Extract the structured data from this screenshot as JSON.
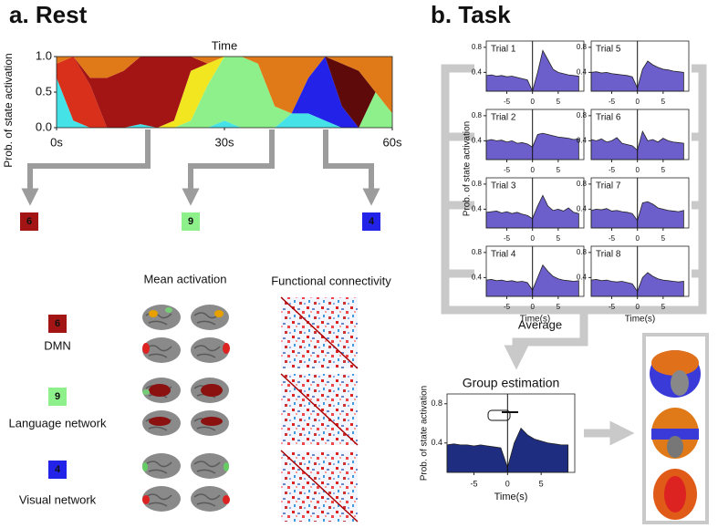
{
  "panel_a": {
    "label": "a. Rest"
  },
  "panel_b": {
    "label": "b. Task"
  },
  "states": [
    {
      "number": "6",
      "color": "#a31515",
      "name": "DMN"
    },
    {
      "number": "9",
      "color": "#8ef08a",
      "name": "Language network"
    },
    {
      "number": "4",
      "color": "#2222e8",
      "name": "Visual network"
    }
  ],
  "column_headers": [
    "Mean activation",
    "Functional connectivity"
  ],
  "average_label": "Average",
  "task_ylabel": "Prob. of state activation",
  "chart_data": [
    {
      "type": "stacked_area",
      "title": "Time",
      "ylabel": "Prob. of state activation",
      "x": [
        0,
        3,
        6,
        9,
        12,
        15,
        18,
        21,
        24,
        27,
        30,
        33,
        36,
        39,
        42,
        45,
        48,
        51,
        54,
        57,
        60
      ],
      "series": [
        {
          "color": "#45e3e8",
          "values": [
            0.7,
            0.1,
            0,
            0,
            0,
            0.05,
            0,
            0,
            0,
            0,
            0.1,
            0,
            0,
            0,
            0.2,
            0.2,
            0.1,
            0,
            0,
            0,
            0
          ]
        },
        {
          "color": "#2222e8",
          "values": [
            0,
            0,
            0,
            0,
            0,
            0,
            0,
            0,
            0,
            0,
            0,
            0,
            0,
            0,
            0,
            0.5,
            0.9,
            0.3,
            0,
            0,
            0
          ]
        },
        {
          "color": "#8ef08a",
          "values": [
            0,
            0,
            0,
            0,
            0,
            0,
            0,
            0,
            0.1,
            0.6,
            0.9,
            1,
            0.9,
            0.3,
            0,
            0,
            0,
            0,
            0,
            0.5,
            0.2
          ]
        },
        {
          "color": "#f2e620",
          "values": [
            0,
            0,
            0,
            0,
            0,
            0,
            0,
            0.1,
            0.7,
            0.3,
            0,
            0,
            0,
            0,
            0,
            0,
            0,
            0,
            0,
            0,
            0
          ]
        },
        {
          "color": "#d8301a",
          "values": [
            0.2,
            0.9,
            0.6,
            0,
            0,
            0,
            0,
            0,
            0,
            0,
            0,
            0,
            0,
            0,
            0,
            0,
            0,
            0,
            0,
            0,
            0
          ]
        },
        {
          "color": "#a31515",
          "values": [
            0,
            0,
            0.1,
            0.7,
            0.8,
            0.95,
            1,
            0.9,
            0.2,
            0,
            0,
            0,
            0,
            0,
            0,
            0,
            0,
            0,
            0,
            0,
            0
          ]
        },
        {
          "color": "#5e0a0a",
          "values": [
            0,
            0,
            0,
            0,
            0,
            0,
            0,
            0,
            0,
            0,
            0,
            0,
            0,
            0,
            0,
            0,
            0,
            0.6,
            0.8,
            0,
            0
          ]
        },
        {
          "color": "#e07a18",
          "values": [
            0.1,
            0,
            0.3,
            0.3,
            0.2,
            0,
            0,
            0,
            0,
            0.1,
            0,
            0,
            0.1,
            0.7,
            0.8,
            0.3,
            0,
            0.1,
            0.2,
            0.5,
            0.8
          ]
        }
      ],
      "xlim": [
        0,
        60
      ],
      "ylim": [
        0,
        1
      ],
      "xticks": [
        {
          "value": 0,
          "label": "0s"
        },
        {
          "value": 30,
          "label": "30s"
        },
        {
          "value": 60,
          "label": "60s"
        }
      ],
      "yticks": [
        {
          "value": 0,
          "label": "0.0"
        },
        {
          "value": 0.5,
          "label": "0.5"
        },
        {
          "value": 1,
          "label": "1.0"
        }
      ]
    },
    {
      "type": "area",
      "title": "Trial 1",
      "color": "#6c5fcc",
      "x": [
        -9,
        -8,
        -7,
        -6,
        -5,
        -4,
        -3,
        -2,
        -1,
        0,
        1,
        2,
        3,
        4,
        5,
        6,
        7,
        8,
        9
      ],
      "values": [
        0.35,
        0.36,
        0.34,
        0.35,
        0.33,
        0.34,
        0.32,
        0.3,
        0.28,
        0.1,
        0.4,
        0.75,
        0.6,
        0.45,
        0.4,
        0.38,
        0.36,
        0.35,
        0.34
      ],
      "xlim": [
        -9,
        10
      ],
      "ylim": [
        0.1,
        0.9
      ],
      "xticks": [
        -5,
        0,
        5
      ],
      "yticks": [
        0.4,
        0.8
      ],
      "vline": 0
    },
    {
      "type": "area",
      "title": "Trial 2",
      "color": "#6c5fcc",
      "x": [
        -9,
        -8,
        -7,
        -6,
        -5,
        -4,
        -3,
        -2,
        -1,
        0,
        1,
        2,
        3,
        4,
        5,
        6,
        7,
        8,
        9
      ],
      "values": [
        0.4,
        0.42,
        0.4,
        0.41,
        0.38,
        0.4,
        0.36,
        0.37,
        0.35,
        0.3,
        0.5,
        0.52,
        0.5,
        0.48,
        0.46,
        0.45,
        0.44,
        0.42,
        0.43
      ],
      "xlim": [
        -9,
        10
      ],
      "ylim": [
        0.1,
        0.9
      ],
      "xticks": [
        -5,
        0,
        5
      ],
      "yticks": [
        0.4,
        0.8
      ],
      "vline": 0
    },
    {
      "type": "area",
      "title": "Trial 3",
      "color": "#6c5fcc",
      "x": [
        -9,
        -8,
        -7,
        -6,
        -5,
        -4,
        -3,
        -2,
        -1,
        0,
        1,
        2,
        3,
        4,
        5,
        6,
        7,
        8,
        9
      ],
      "values": [
        0.35,
        0.36,
        0.37,
        0.34,
        0.36,
        0.33,
        0.35,
        0.32,
        0.3,
        0.25,
        0.45,
        0.62,
        0.45,
        0.38,
        0.4,
        0.37,
        0.42,
        0.35,
        0.33
      ],
      "xlim": [
        -9,
        10
      ],
      "ylim": [
        0.1,
        0.9
      ],
      "xticks": [
        -5,
        0,
        5
      ],
      "yticks": [
        0.4,
        0.8
      ],
      "vline": 0
    },
    {
      "type": "area",
      "title": "Trial 4",
      "color": "#6c5fcc",
      "x": [
        -9,
        -8,
        -7,
        -6,
        -5,
        -4,
        -3,
        -2,
        -1,
        0,
        1,
        2,
        3,
        4,
        5,
        6,
        7,
        8,
        9
      ],
      "values": [
        0.36,
        0.37,
        0.35,
        0.36,
        0.34,
        0.35,
        0.33,
        0.34,
        0.32,
        0.2,
        0.4,
        0.6,
        0.5,
        0.42,
        0.38,
        0.36,
        0.35,
        0.34,
        0.35
      ],
      "xlim": [
        -9,
        10
      ],
      "ylim": [
        0.1,
        0.9
      ],
      "xticks": [
        -5,
        0,
        5
      ],
      "yticks": [
        0.4,
        0.8
      ],
      "vline": 0,
      "xlabel": "Time(s)"
    },
    {
      "type": "area",
      "title": "Trial 5",
      "color": "#6c5fcc",
      "x": [
        -9,
        -8,
        -7,
        -6,
        -5,
        -4,
        -3,
        -2,
        -1,
        0,
        1,
        2,
        3,
        4,
        5,
        6,
        7,
        8,
        9
      ],
      "values": [
        0.4,
        0.41,
        0.39,
        0.4,
        0.38,
        0.37,
        0.36,
        0.35,
        0.33,
        0.15,
        0.45,
        0.58,
        0.52,
        0.48,
        0.45,
        0.44,
        0.42,
        0.41,
        0.4
      ],
      "xlim": [
        -9,
        10
      ],
      "ylim": [
        0.1,
        0.9
      ],
      "xticks": [
        -5,
        0,
        5
      ],
      "yticks": [
        0.4,
        0.8
      ],
      "vline": 0
    },
    {
      "type": "area",
      "title": "Trial 6",
      "color": "#6c5fcc",
      "x": [
        -9,
        -8,
        -7,
        -6,
        -5,
        -4,
        -3,
        -2,
        -1,
        0,
        1,
        2,
        3,
        4,
        5,
        6,
        7,
        8,
        9
      ],
      "values": [
        0.42,
        0.4,
        0.43,
        0.38,
        0.4,
        0.45,
        0.36,
        0.34,
        0.32,
        0.25,
        0.55,
        0.4,
        0.42,
        0.38,
        0.44,
        0.4,
        0.38,
        0.37,
        0.36
      ],
      "xlim": [
        -9,
        10
      ],
      "ylim": [
        0.1,
        0.9
      ],
      "xticks": [
        -5,
        0,
        5
      ],
      "yticks": [
        0.4,
        0.8
      ],
      "vline": 0
    },
    {
      "type": "area",
      "title": "Trial 7",
      "color": "#6c5fcc",
      "x": [
        -9,
        -8,
        -7,
        -6,
        -5,
        -4,
        -3,
        -2,
        -1,
        0,
        1,
        2,
        3,
        4,
        5,
        6,
        7,
        8,
        9
      ],
      "values": [
        0.38,
        0.4,
        0.39,
        0.41,
        0.37,
        0.38,
        0.36,
        0.35,
        0.33,
        0.22,
        0.5,
        0.52,
        0.48,
        0.42,
        0.4,
        0.38,
        0.37,
        0.36,
        0.38
      ],
      "xlim": [
        -9,
        10
      ],
      "ylim": [
        0.1,
        0.9
      ],
      "xticks": [
        -5,
        0,
        5
      ],
      "yticks": [
        0.4,
        0.8
      ],
      "vline": 0
    },
    {
      "type": "area",
      "title": "Trial 8",
      "color": "#6c5fcc",
      "x": [
        -9,
        -8,
        -7,
        -6,
        -5,
        -4,
        -3,
        -2,
        -1,
        0,
        1,
        2,
        3,
        4,
        5,
        6,
        7,
        8,
        9
      ],
      "values": [
        0.36,
        0.37,
        0.35,
        0.36,
        0.34,
        0.33,
        0.34,
        0.32,
        0.3,
        0.18,
        0.4,
        0.48,
        0.42,
        0.38,
        0.36,
        0.35,
        0.34,
        0.33,
        0.34
      ],
      "xlim": [
        -9,
        10
      ],
      "ylim": [
        0.1,
        0.9
      ],
      "xticks": [
        -5,
        0,
        5
      ],
      "yticks": [
        0.4,
        0.8
      ],
      "vline": 0,
      "xlabel": "Time(s)"
    },
    {
      "type": "area",
      "title": "Group estimation",
      "color": "#1e2d80",
      "ylabel": "Prob. of state activation",
      "xlabel": "Time(s)",
      "x": [
        -9,
        -8,
        -7,
        -6,
        -5,
        -4,
        -3,
        -2,
        -1,
        0,
        1,
        2,
        3,
        4,
        5,
        6,
        7,
        8,
        9
      ],
      "values": [
        0.38,
        0.39,
        0.38,
        0.38,
        0.37,
        0.38,
        0.37,
        0.36,
        0.35,
        0.15,
        0.4,
        0.55,
        0.48,
        0.44,
        0.42,
        0.4,
        0.39,
        0.38,
        0.38
      ],
      "xlim": [
        -9,
        10
      ],
      "ylim": [
        0.1,
        0.9
      ],
      "xticks": [
        -5,
        0,
        5
      ],
      "yticks": [
        0.4,
        0.8
      ],
      "vline": 0
    }
  ]
}
